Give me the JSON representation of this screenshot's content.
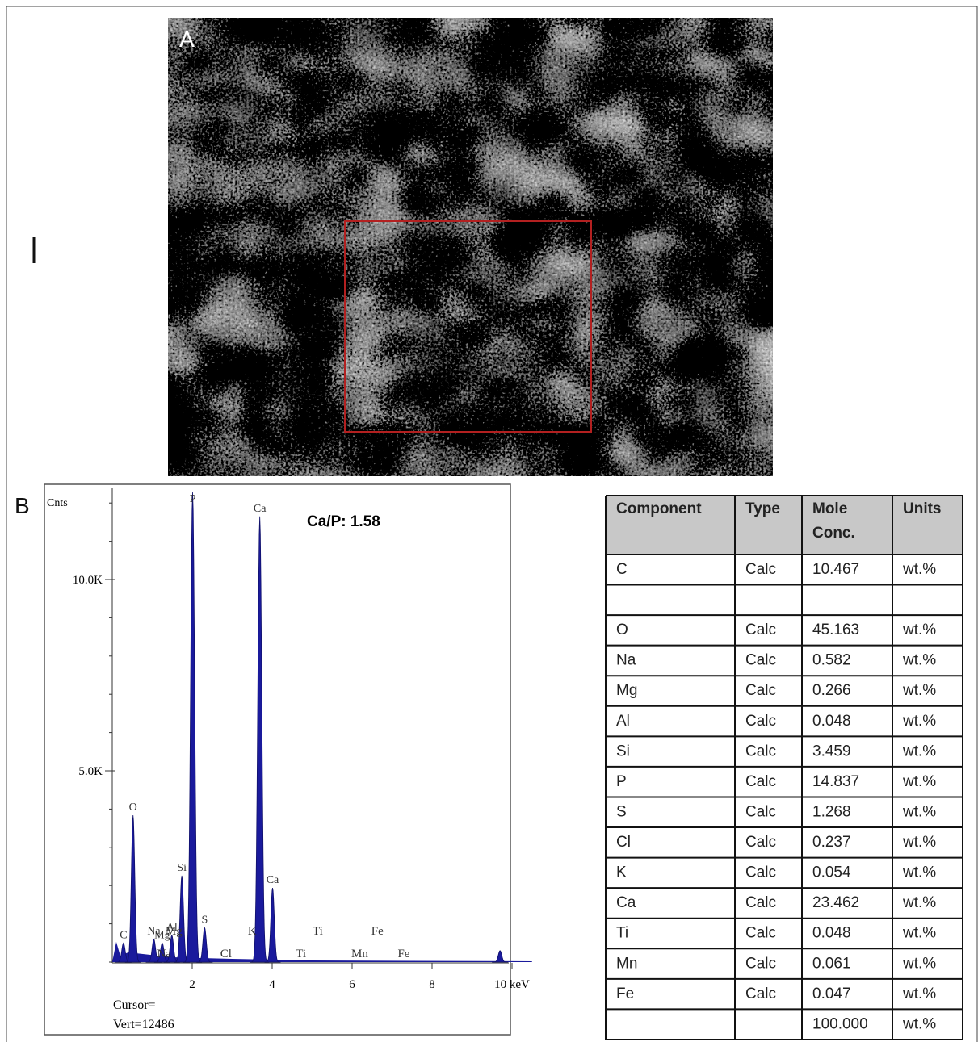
{
  "panels": {
    "a": "A",
    "b": "B"
  },
  "spectrum": {
    "y_unit": "Cnts",
    "ratio_label": "Ca/P: 1.58",
    "cursor": "Cursor=",
    "vert": "Vert=12486",
    "yticks": [
      {
        "value": 10000,
        "label": "10.0K"
      },
      {
        "value": 5000,
        "label": "5.0K"
      }
    ],
    "xticks": [
      2,
      4,
      6,
      8,
      {
        "value": 10,
        "label": "10 keV"
      }
    ],
    "peaks": [
      {
        "label": "C",
        "energy": 0.28,
        "counts": 500
      },
      {
        "label": "O",
        "energy": 0.52,
        "counts": 3840
      },
      {
        "label": "Na",
        "energy": 1.04,
        "counts": 600
      },
      {
        "label": "Mg",
        "energy": 1.25,
        "counts": 500
      },
      {
        "label": "Al",
        "energy": 1.49,
        "counts": 700
      },
      {
        "label": "Si",
        "energy": 1.74,
        "counts": 2260
      },
      {
        "label": "P",
        "energy": 2.01,
        "counts": 12280
      },
      {
        "label": "S",
        "energy": 2.31,
        "counts": 900
      },
      {
        "label": "Ca",
        "energy": 3.69,
        "counts": 11650
      },
      {
        "label": "Ca",
        "energy": 4.01,
        "counts": 1940
      },
      {
        "energy": 9.7,
        "counts": 300
      }
    ],
    "markers": [
      {
        "label": "Na",
        "energy": 1.04
      },
      {
        "label": "Mg",
        "energy": 1.25
      },
      {
        "label": "Cl",
        "energy": 2.62
      },
      {
        "label": "K",
        "energy": 3.31
      },
      {
        "label": "Ti",
        "energy": 4.51
      },
      {
        "label": "Ti",
        "energy": 4.93
      },
      {
        "label": "Mn",
        "energy": 5.9
      },
      {
        "label": "Fe",
        "energy": 6.4
      },
      {
        "label": "Fe",
        "energy": 7.06
      }
    ]
  },
  "table": {
    "headers": [
      "Component",
      "Type",
      "Mole Conc.",
      "Units"
    ],
    "rows": [
      [
        "C",
        "Calc",
        "10.467",
        "wt.%"
      ],
      [
        null,
        null,
        null,
        null
      ],
      [
        "O",
        "Calc",
        "45.163",
        "wt.%"
      ],
      [
        "Na",
        "Calc",
        "0.582",
        "wt.%"
      ],
      [
        "Mg",
        "Calc",
        "0.266",
        "wt.%"
      ],
      [
        "Al",
        "Calc",
        "0.048",
        "wt.%"
      ],
      [
        "Si",
        "Calc",
        "3.459",
        "wt.%"
      ],
      [
        "P",
        "Calc",
        "14.837",
        "wt.%"
      ],
      [
        "S",
        "Calc",
        "1.268",
        "wt.%"
      ],
      [
        "Cl",
        "Calc",
        "0.237",
        "wt.%"
      ],
      [
        "K",
        "Calc",
        "0.054",
        "wt.%"
      ],
      [
        "Ca",
        "Calc",
        "23.462",
        "wt.%"
      ],
      [
        "Ti",
        "Calc",
        "0.048",
        "wt.%"
      ],
      [
        "Mn",
        "Calc",
        "0.061",
        "wt.%"
      ],
      [
        "Fe",
        "Calc",
        "0.047",
        "wt.%"
      ],
      [
        null,
        null,
        "100.000",
        "wt.%"
      ]
    ]
  }
}
